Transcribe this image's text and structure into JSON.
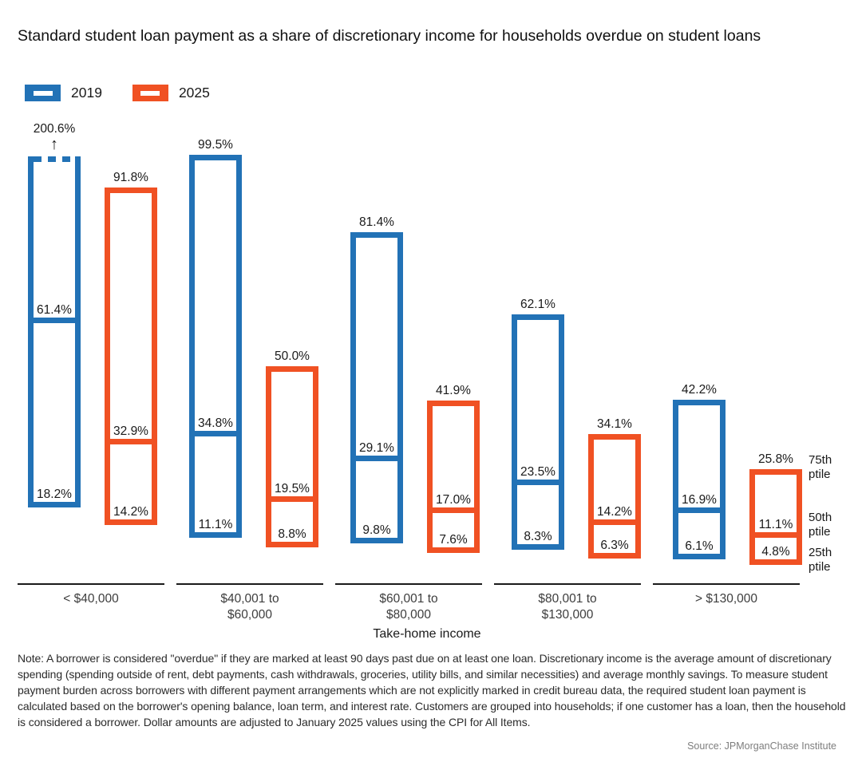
{
  "title": "Standard student loan payment as a share of discretionary income for households overdue on student loans",
  "colors": {
    "blue_2019": "#2272B6",
    "orange_2025": "#F05123",
    "axis": "#1a1a1a"
  },
  "chart_data": {
    "type": "bar",
    "subtype": "percentile-range-boxes",
    "title": "Standard student loan payment as a share of discretionary income for households overdue on student loans",
    "xlabel": "Take-home income",
    "unit": "%",
    "grid": false,
    "legend_position": "top-left",
    "categories": [
      "< $40,000",
      "$40,001 to\n$60,000",
      "$60,001 to\n$80,000",
      "$80,001 to\n$130,000",
      "> $130,000"
    ],
    "percentile_annotations": [
      "75th ptile",
      "50th ptile",
      "25th ptile"
    ],
    "clip_annotation": {
      "series": "2019",
      "category_index": 0,
      "label": "200.6%",
      "arrow": "↑",
      "note": "75th percentile exceeds plotted range, dashed cap at ~100%"
    },
    "series": [
      {
        "name": "2019",
        "color": "#2272B6",
        "values": [
          {
            "p25": 18.2,
            "p50": 61.4,
            "p75": 200.6,
            "clipped": true
          },
          {
            "p25": 11.1,
            "p50": 34.8,
            "p75": 99.5
          },
          {
            "p25": 9.8,
            "p50": 29.1,
            "p75": 81.4
          },
          {
            "p25": 8.3,
            "p50": 23.5,
            "p75": 62.1
          },
          {
            "p25": 6.1,
            "p50": 16.9,
            "p75": 42.2
          }
        ]
      },
      {
        "name": "2025",
        "color": "#F05123",
        "values": [
          {
            "p25": 14.2,
            "p50": 32.9,
            "p75": 91.8
          },
          {
            "p25": 8.8,
            "p50": 19.5,
            "p75": 50.0
          },
          {
            "p25": 7.6,
            "p50": 17.0,
            "p75": 41.9
          },
          {
            "p25": 6.3,
            "p50": 14.2,
            "p75": 34.1
          },
          {
            "p25": 4.8,
            "p50": 11.1,
            "p75": 25.8
          }
        ]
      }
    ]
  },
  "note": "Note: A borrower is considered \"overdue\" if they are marked at least 90 days past due on at least one loan. Discretionary income is the average amount of discretionary spending (spending outside of rent, debt payments, cash withdrawals, groceries, utility bills, and similar necessities) and average monthly savings. To measure student payment burden across borrowers with different payment arrangements which are not explicitly marked in credit bureau data, the required student loan payment is calculated based on the borrower's opening balance, loan term, and interest rate. Customers are grouped into households; if one customer has a loan, then the household is considered a borrower. Dollar amounts are adjusted to January 2025 values using the CPI for All Items.",
  "source": "Source: JPMorganChase Institute"
}
